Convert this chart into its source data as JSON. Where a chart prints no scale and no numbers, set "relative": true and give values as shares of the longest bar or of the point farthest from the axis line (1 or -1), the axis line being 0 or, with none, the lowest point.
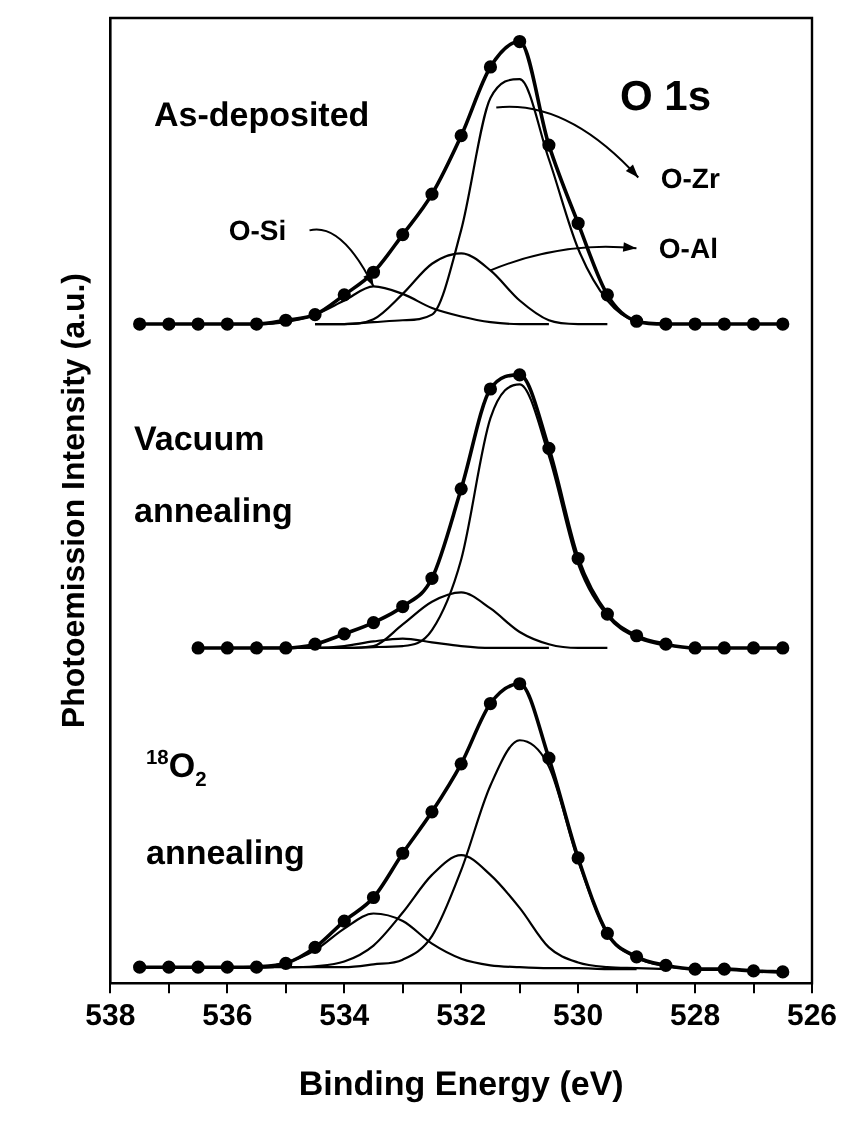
{
  "chart_data": {
    "type": "line",
    "relative": true,
    "xlabel": "Binding Energy (eV)",
    "ylabel": "Photoemission Intensity (a.u.)",
    "x": [
      537.5,
      537,
      536.5,
      536,
      535.5,
      535,
      534.5,
      534,
      533.5,
      533,
      532.5,
      532,
      531.5,
      531,
      530.5,
      530,
      529.5,
      529,
      528.5,
      528,
      527.5,
      527,
      526.5
    ],
    "xlim": [
      538,
      526
    ],
    "xticks": [
      538,
      {
        "value": 537,
        "label": null
      },
      536,
      {
        "value": 535,
        "label": null
      },
      534,
      {
        "value": 533,
        "label": null
      },
      532,
      {
        "value": 531,
        "label": null
      },
      530,
      {
        "value": 529,
        "label": null
      },
      528,
      {
        "value": 527,
        "label": null
      },
      526
    ],
    "grid": false,
    "legend": false,
    "marker": "none",
    "line_style": "solid",
    "series": [
      {
        "marker": "circle",
        "color": "#000000",
        "values": [
          0.7,
          0.7,
          0.7,
          0.7,
          0.7,
          0.704,
          0.71,
          0.731,
          0.755,
          0.795,
          0.838,
          0.9,
          0.973,
          1.0,
          0.89,
          0.807,
          0.731,
          0.703,
          0.7,
          0.7,
          0.7,
          0.7,
          0.7
        ]
      },
      {
        "color": "#000000",
        "x": [
          534.5,
          534,
          533.5,
          533,
          532.5,
          532,
          531.5,
          531,
          530.5,
          530,
          529.5,
          529,
          528.5
        ],
        "values": [
          0.7,
          0.7,
          0.702,
          0.704,
          0.71,
          0.8,
          0.94,
          0.96,
          0.875,
          0.78,
          0.725,
          0.703,
          0.7
        ]
      },
      {
        "color": "#000000",
        "x": [
          534.5,
          534,
          533.5,
          533,
          532.5,
          532,
          531.5,
          531,
          530.5,
          530,
          529.5
        ],
        "values": [
          0.7,
          0.7,
          0.705,
          0.732,
          0.764,
          0.775,
          0.757,
          0.725,
          0.704,
          0.7,
          0.7
        ]
      },
      {
        "color": "#000000",
        "x": [
          536,
          535.5,
          535,
          534.5,
          534,
          533.5,
          533,
          532.5,
          532,
          531.5,
          531,
          530.5
        ],
        "values": [
          0.7,
          0.7,
          0.702,
          0.71,
          0.725,
          0.74,
          0.732,
          0.717,
          0.708,
          0.702,
          0.7,
          0.7
        ]
      },
      {
        "marker": "circle",
        "color": "#000000",
        "x": [
          536.5,
          536,
          535.5,
          535,
          534.5,
          534,
          533.5,
          533,
          532.5,
          532,
          531.5,
          531,
          530.5,
          530,
          529.5,
          529,
          528.5,
          528,
          527.5,
          527,
          526.5
        ],
        "values": [
          0.356,
          0.356,
          0.356,
          0.356,
          0.36,
          0.371,
          0.383,
          0.4,
          0.43,
          0.525,
          0.631,
          0.646,
          0.568,
          0.451,
          0.392,
          0.369,
          0.36,
          0.356,
          0.356,
          0.356,
          0.356
        ]
      },
      {
        "color": "#000000",
        "x": [
          535,
          534.5,
          534,
          533.5,
          533,
          532.5,
          532,
          531.5,
          531,
          530.5,
          530,
          529.5,
          529,
          528.5
        ],
        "values": [
          0.356,
          0.356,
          0.356,
          0.357,
          0.358,
          0.375,
          0.45,
          0.6,
          0.636,
          0.56,
          0.445,
          0.39,
          0.367,
          0.358
        ]
      },
      {
        "color": "#000000",
        "x": [
          535,
          534.5,
          534,
          533.5,
          533,
          532.5,
          532,
          531.5,
          531,
          530.5,
          530,
          529.5
        ],
        "values": [
          0.356,
          0.356,
          0.356,
          0.358,
          0.381,
          0.405,
          0.415,
          0.398,
          0.373,
          0.36,
          0.356,
          0.356
        ]
      },
      {
        "color": "#000000",
        "x": [
          535.5,
          535,
          534.5,
          534,
          533.5,
          533,
          532.5,
          532,
          531.5,
          531,
          530.5
        ],
        "values": [
          0.356,
          0.356,
          0.356,
          0.358,
          0.363,
          0.366,
          0.362,
          0.358,
          0.356,
          0.356,
          0.356
        ]
      },
      {
        "marker": "circle",
        "color": "#000000",
        "values": [
          0.017,
          0.017,
          0.017,
          0.017,
          0.017,
          0.021,
          0.038,
          0.066,
          0.091,
          0.138,
          0.182,
          0.233,
          0.297,
          0.318,
          0.239,
          0.133,
          0.053,
          0.028,
          0.019,
          0.015,
          0.015,
          0.013,
          0.012
        ]
      },
      {
        "color": "#000000",
        "x": [
          535,
          534.5,
          534,
          533.5,
          533,
          532.5,
          532,
          531.5,
          531,
          530.5,
          530,
          529.5,
          529,
          528.5,
          528
        ],
        "values": [
          0.017,
          0.017,
          0.017,
          0.02,
          0.025,
          0.05,
          0.12,
          0.21,
          0.258,
          0.23,
          0.13,
          0.052,
          0.027,
          0.018,
          0.015
        ]
      },
      {
        "color": "#000000",
        "x": [
          536,
          535.5,
          535,
          534.5,
          534,
          533.5,
          533,
          532.5,
          532,
          531.5,
          531,
          530.5,
          530,
          529.5,
          529,
          528.5
        ],
        "values": [
          0.017,
          0.017,
          0.017,
          0.018,
          0.023,
          0.04,
          0.075,
          0.115,
          0.136,
          0.115,
          0.08,
          0.038,
          0.022,
          0.017,
          0.016,
          0.015
        ]
      },
      {
        "color": "#000000",
        "x": [
          537,
          536.5,
          536,
          535.5,
          535,
          534.5,
          534,
          533.5,
          533,
          532.5,
          532,
          531.5,
          531,
          530.5,
          530,
          529.5,
          529
        ],
        "values": [
          0.017,
          0.017,
          0.017,
          0.018,
          0.022,
          0.035,
          0.058,
          0.074,
          0.066,
          0.042,
          0.026,
          0.019,
          0.017,
          0.016,
          0.016,
          0.015,
          0.015
        ]
      }
    ],
    "annotations": [
      "As-deposited",
      "O 1s",
      "Vacuum annealing",
      "$^{18}$O$_{2}$ annealing",
      {
        "text": "O-Zr",
        "x": 531.4,
        "y": 0.93
      },
      {
        "text": "O-Al",
        "x": 531.5,
        "y": 0.757
      },
      {
        "text": "O-Si",
        "x": 533.5,
        "y": 0.74
      }
    ]
  }
}
